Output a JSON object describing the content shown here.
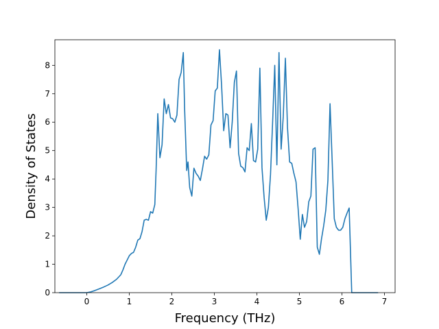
{
  "chart_data": {
    "type": "line",
    "title": "",
    "xlabel": "Frequency (THz)",
    "ylabel": "Density of States",
    "xlim": [
      -0.75,
      7.25
    ],
    "ylim": [
      0,
      8.9
    ],
    "xticks": [
      0,
      1,
      2,
      3,
      4,
      5,
      6,
      7
    ],
    "yticks": [
      0,
      1,
      2,
      3,
      4,
      5,
      6,
      7,
      8
    ],
    "xtick_labels": [
      "0",
      "1",
      "2",
      "3",
      "4",
      "5",
      "6",
      "7"
    ],
    "ytick_labels": [
      "0",
      "1",
      "2",
      "3",
      "4",
      "5",
      "6",
      "7",
      "8"
    ],
    "grid": false,
    "line_color": "#1f77b4",
    "series": [
      {
        "x": [
          -0.65,
          0.0,
          0.1,
          0.2,
          0.3,
          0.4,
          0.5,
          0.6,
          0.7,
          0.8,
          0.85,
          0.9,
          0.95,
          1.0,
          1.05,
          1.1,
          1.15,
          1.2,
          1.25,
          1.3,
          1.35,
          1.4,
          1.45,
          1.5,
          1.55,
          1.6,
          1.63,
          1.67,
          1.72,
          1.77,
          1.82,
          1.87,
          1.92,
          1.97,
          2.02,
          2.07,
          2.12,
          2.17,
          2.22,
          2.27,
          2.3,
          2.35,
          2.38,
          2.42,
          2.47,
          2.52,
          2.57,
          2.62,
          2.67,
          2.72,
          2.77,
          2.82,
          2.87,
          2.92,
          2.97,
          3.02,
          3.07,
          3.12,
          3.17,
          3.22,
          3.27,
          3.32,
          3.37,
          3.42,
          3.47,
          3.52,
          3.57,
          3.62,
          3.67,
          3.72,
          3.77,
          3.82,
          3.87,
          3.92,
          3.97,
          4.02,
          4.07,
          4.12,
          4.17,
          4.22,
          4.27,
          4.32,
          4.37,
          4.42,
          4.47,
          4.52,
          4.57,
          4.62,
          4.67,
          4.72,
          4.77,
          4.82,
          4.87,
          4.92,
          4.97,
          5.02,
          5.07,
          5.12,
          5.17,
          5.22,
          5.27,
          5.32,
          5.37,
          5.42,
          5.47,
          5.52,
          5.57,
          5.62,
          5.67,
          5.72,
          5.77,
          5.82,
          5.87,
          5.92,
          5.97,
          6.02,
          6.07,
          6.12,
          6.17,
          6.23,
          6.27,
          6.85
        ],
        "y": [
          0,
          0,
          0.03,
          0.08,
          0.14,
          0.2,
          0.27,
          0.36,
          0.47,
          0.63,
          0.8,
          1.0,
          1.15,
          1.3,
          1.38,
          1.42,
          1.6,
          1.85,
          1.9,
          2.15,
          2.55,
          2.58,
          2.55,
          2.85,
          2.8,
          3.1,
          4.3,
          6.3,
          4.75,
          5.2,
          6.82,
          6.3,
          6.62,
          6.15,
          6.12,
          6.0,
          6.25,
          7.5,
          7.75,
          8.45,
          6.5,
          4.3,
          4.6,
          3.7,
          3.4,
          4.38,
          4.2,
          4.1,
          3.95,
          4.35,
          4.8,
          4.7,
          4.85,
          5.9,
          6.05,
          7.1,
          7.2,
          8.55,
          7.3,
          5.7,
          6.3,
          6.25,
          5.1,
          6.0,
          7.4,
          7.8,
          4.9,
          4.45,
          4.4,
          4.25,
          5.1,
          5.0,
          5.95,
          4.65,
          4.6,
          5.05,
          7.9,
          4.4,
          3.35,
          2.55,
          3.0,
          4.15,
          6.0,
          8.0,
          4.5,
          8.45,
          5.05,
          6.2,
          8.25,
          5.8,
          4.6,
          4.55,
          4.2,
          3.9,
          2.95,
          1.88,
          2.75,
          2.3,
          2.5,
          3.2,
          3.4,
          5.05,
          5.1,
          1.6,
          1.35,
          1.9,
          2.35,
          2.9,
          3.95,
          6.65,
          4.65,
          2.6,
          2.3,
          2.2,
          2.2,
          2.3,
          2.6,
          2.8,
          2.98,
          0,
          0,
          0
        ]
      }
    ]
  }
}
